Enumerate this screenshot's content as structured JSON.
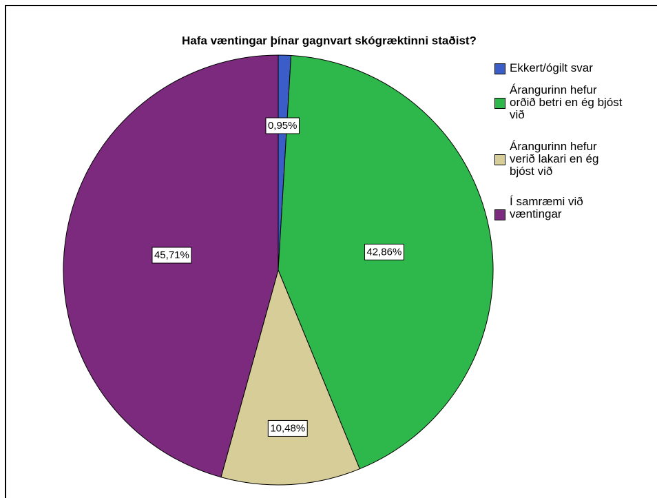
{
  "chart_data": {
    "type": "pie",
    "title": "Hafa væntingar þínar gagnvart skógræktinni staðist?",
    "categories": [
      "Ekkert/ógilt svar",
      "Árangurinn hefur orðið betri en ég bjóst við",
      "Árangurinn hefur verið lakari en ég bjóst við",
      "Í samræmi við væntingar"
    ],
    "values": [
      0.95,
      42.86,
      10.48,
      45.71
    ],
    "value_labels": [
      "0,95%",
      "42,86%",
      "10,48%",
      "45,71%"
    ],
    "colors": [
      "#3a5dc8",
      "#2eb84b",
      "#d6cd99",
      "#7c2a7d"
    ],
    "legend": "upper right"
  }
}
